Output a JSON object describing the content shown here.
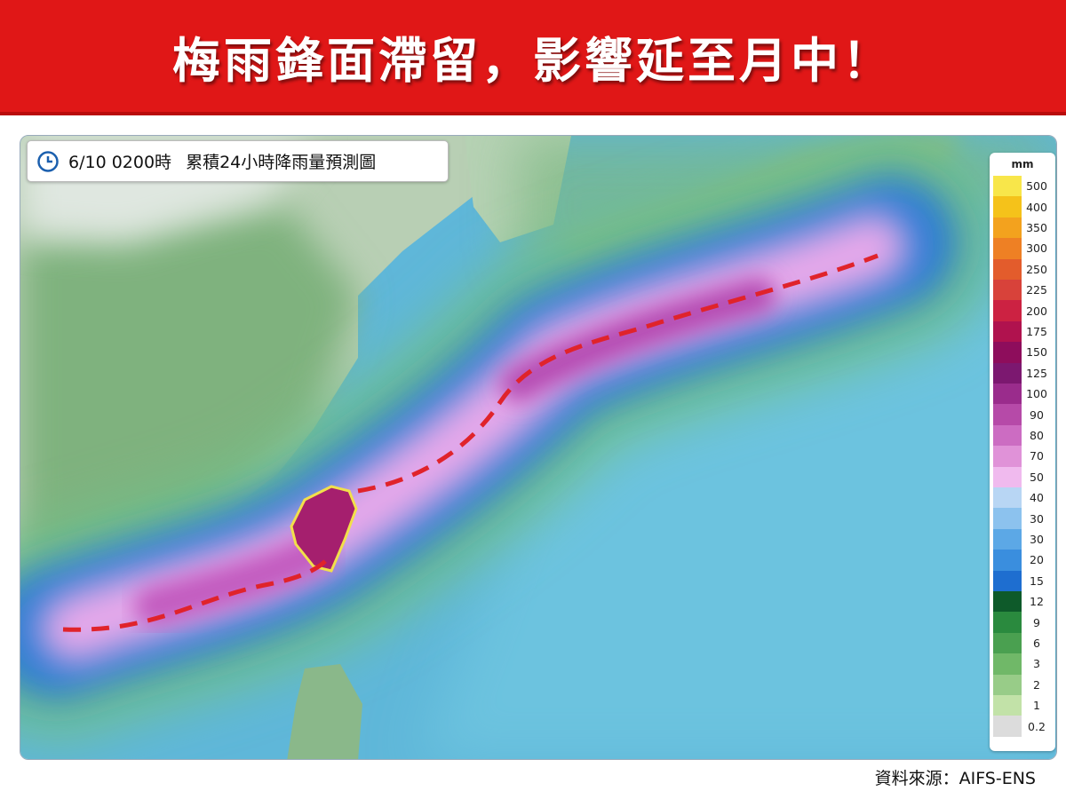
{
  "header": {
    "title": "梅雨鋒面滯留，影響延至月中！"
  },
  "map": {
    "time": "6/10 0200時",
    "caption": "累積24小時降雨量預測圖"
  },
  "legend": {
    "unit": "mm",
    "items": [
      {
        "label": "500",
        "color": "#f8e64a"
      },
      {
        "label": "400",
        "color": "#f5c21a"
      },
      {
        "label": "350",
        "color": "#f3a21e"
      },
      {
        "label": "300",
        "color": "#ee8024"
      },
      {
        "label": "250",
        "color": "#e35c2c"
      },
      {
        "label": "225",
        "color": "#d8423a"
      },
      {
        "label": "200",
        "color": "#cc2242"
      },
      {
        "label": "175",
        "color": "#b0124e"
      },
      {
        "label": "150",
        "color": "#8e0d5c"
      },
      {
        "label": "125",
        "color": "#7c1870"
      },
      {
        "label": "100",
        "color": "#9a2c8c"
      },
      {
        "label": "90",
        "color": "#b64aa8"
      },
      {
        "label": "80",
        "color": "#cc6cc2"
      },
      {
        "label": "70",
        "color": "#e092d8"
      },
      {
        "label": "50",
        "color": "#f0baee"
      },
      {
        "label": "40",
        "color": "#b8d6f4"
      },
      {
        "label": "30",
        "color": "#8cc2ee"
      },
      {
        "label": "30",
        "color": "#5ca8e6"
      },
      {
        "label": "20",
        "color": "#3a8ede"
      },
      {
        "label": "15",
        "color": "#1e6ed0"
      },
      {
        "label": "12",
        "color": "#0e5a2a"
      },
      {
        "label": "9",
        "color": "#2a8a3e"
      },
      {
        "label": "6",
        "color": "#4aa050"
      },
      {
        "label": "3",
        "color": "#70b868"
      },
      {
        "label": "2",
        "color": "#98cc88"
      },
      {
        "label": "1",
        "color": "#c2e2a8"
      },
      {
        "label": "0.2",
        "color": "#dcdcdc"
      }
    ]
  },
  "footer": {
    "source": "資料來源：AIFS-ENS"
  }
}
